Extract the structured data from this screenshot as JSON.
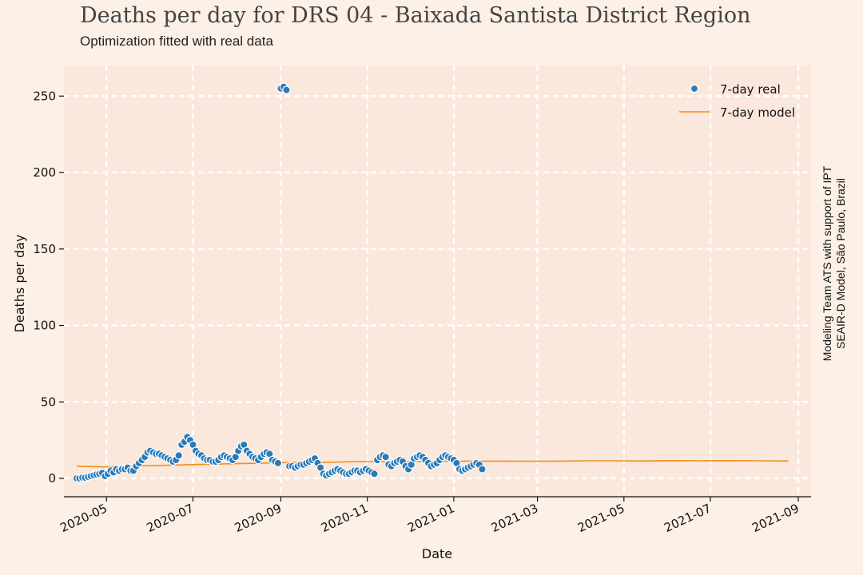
{
  "header": {
    "title": "Deaths per day for DRS 04 - Baixada Santista District Region",
    "subtitle": "Optimization fitted with real data"
  },
  "credit": {
    "line1": "Modeling Team ATS with support of IPT",
    "line2": "SEAIR-D Model, São Paulo, Brazil"
  },
  "colors": {
    "background": "#fdf0e6",
    "plot_area": "#fae8dc",
    "real": "#2a7ab8",
    "model": "#f28e1c",
    "grid": "#ffffff"
  },
  "chart_data": {
    "type": "scatter",
    "title": "Deaths per day for DRS 04 - Baixada Santista District Region",
    "subtitle": "Optimization fitted with real data",
    "xlabel": "Date",
    "ylabel": "Deaths per day",
    "xlim": [
      "2020-04-01",
      "2021-09-10"
    ],
    "ylim": [
      -12,
      270
    ],
    "x_ticks": [
      "2020-05",
      "2020-07",
      "2020-09",
      "2020-11",
      "2021-01",
      "2021-03",
      "2021-05",
      "2021-07",
      "2021-09"
    ],
    "y_ticks": [
      0,
      50,
      100,
      150,
      200,
      250
    ],
    "grid": true,
    "legend_position": "top-right",
    "series": [
      {
        "name": "7-day real",
        "style": "markers",
        "x": [
          "2020-04-10",
          "2020-04-12",
          "2020-04-14",
          "2020-04-16",
          "2020-04-18",
          "2020-04-20",
          "2020-04-22",
          "2020-04-24",
          "2020-04-26",
          "2020-04-28",
          "2020-04-30",
          "2020-05-02",
          "2020-05-04",
          "2020-05-06",
          "2020-05-08",
          "2020-05-10",
          "2020-05-12",
          "2020-05-14",
          "2020-05-16",
          "2020-05-18",
          "2020-05-20",
          "2020-05-22",
          "2020-05-24",
          "2020-05-26",
          "2020-05-28",
          "2020-05-30",
          "2020-06-01",
          "2020-06-03",
          "2020-06-05",
          "2020-06-07",
          "2020-06-09",
          "2020-06-11",
          "2020-06-13",
          "2020-06-15",
          "2020-06-17",
          "2020-06-19",
          "2020-06-21",
          "2020-06-23",
          "2020-06-25",
          "2020-06-27",
          "2020-06-29",
          "2020-07-01",
          "2020-07-03",
          "2020-07-05",
          "2020-07-07",
          "2020-07-09",
          "2020-07-11",
          "2020-07-13",
          "2020-07-15",
          "2020-07-17",
          "2020-07-19",
          "2020-07-21",
          "2020-07-23",
          "2020-07-25",
          "2020-07-27",
          "2020-07-29",
          "2020-07-31",
          "2020-08-02",
          "2020-08-04",
          "2020-08-06",
          "2020-08-08",
          "2020-08-10",
          "2020-08-12",
          "2020-08-14",
          "2020-08-16",
          "2020-08-18",
          "2020-08-20",
          "2020-08-22",
          "2020-08-24",
          "2020-08-26",
          "2020-08-28",
          "2020-08-30",
          "2020-09-01",
          "2020-09-03",
          "2020-09-05",
          "2020-09-07",
          "2020-09-09",
          "2020-09-11",
          "2020-09-13",
          "2020-09-15",
          "2020-09-17",
          "2020-09-19",
          "2020-09-21",
          "2020-09-23",
          "2020-09-25",
          "2020-09-27",
          "2020-09-29",
          "2020-10-01",
          "2020-10-03",
          "2020-10-05",
          "2020-10-07",
          "2020-10-09",
          "2020-10-11",
          "2020-10-13",
          "2020-10-15",
          "2020-10-17",
          "2020-10-19",
          "2020-10-21",
          "2020-10-23",
          "2020-10-25",
          "2020-10-27",
          "2020-10-29",
          "2020-10-31",
          "2020-11-02",
          "2020-11-04",
          "2020-11-06",
          "2020-11-08",
          "2020-11-10",
          "2020-11-12",
          "2020-11-14",
          "2020-11-16",
          "2020-11-18",
          "2020-11-20",
          "2020-11-22",
          "2020-11-24",
          "2020-11-26",
          "2020-11-28",
          "2020-11-30",
          "2020-12-02",
          "2020-12-04",
          "2020-12-06",
          "2020-12-08",
          "2020-12-10",
          "2020-12-12",
          "2020-12-14",
          "2020-12-16",
          "2020-12-18",
          "2020-12-20",
          "2020-12-22",
          "2020-12-24",
          "2020-12-26",
          "2020-12-28",
          "2020-12-30",
          "2021-01-01",
          "2021-01-03",
          "2021-01-05",
          "2021-01-07",
          "2021-01-09",
          "2021-01-11",
          "2021-01-13",
          "2021-01-15",
          "2021-01-17",
          "2021-01-19",
          "2021-01-21"
        ],
        "y": [
          0,
          0,
          0.5,
          0.5,
          1,
          1.5,
          2,
          2.5,
          3,
          3.5,
          1.5,
          3,
          5,
          4,
          6,
          5,
          6,
          6,
          7,
          5,
          5,
          8,
          10,
          12,
          14,
          17,
          18,
          17,
          16,
          16,
          15,
          14,
          13,
          12,
          11,
          12,
          15,
          22,
          24,
          27,
          25,
          22,
          18,
          16,
          15,
          13,
          12,
          12,
          11,
          11,
          12,
          14,
          15,
          14,
          13,
          12,
          14,
          18,
          21,
          22,
          18,
          16,
          14,
          13,
          12,
          14,
          16,
          17,
          16,
          12,
          11,
          10,
          255,
          256,
          254,
          8,
          8,
          7,
          8,
          9,
          9,
          10,
          11,
          12,
          13,
          10,
          7,
          3,
          2,
          3,
          4,
          5,
          6,
          5,
          4,
          3,
          3,
          4,
          5,
          5,
          4,
          5,
          6,
          5,
          4,
          3,
          12,
          14,
          15,
          14,
          9,
          8,
          10,
          11,
          12,
          11,
          8,
          6,
          9,
          13,
          14,
          15,
          14,
          12,
          10,
          8,
          9,
          10,
          12,
          14,
          15,
          14,
          13,
          12,
          10,
          6,
          5,
          6,
          7,
          8,
          9,
          10,
          9,
          6
        ]
      },
      {
        "name": "7-day model",
        "style": "line",
        "x": [
          "2020-04-10",
          "2020-05-01",
          "2020-05-20",
          "2020-06-10",
          "2020-07-01",
          "2020-07-25",
          "2020-08-20",
          "2020-09-10",
          "2020-10-01",
          "2020-10-25",
          "2020-11-15",
          "2020-12-05",
          "2020-12-25",
          "2021-01-15",
          "2021-02-05",
          "2021-02-25",
          "2021-03-15",
          "2021-04-05",
          "2021-04-25",
          "2021-05-15",
          "2021-06-05",
          "2021-06-25",
          "2021-07-15",
          "2021-08-05",
          "2021-08-25"
        ],
        "y": [
          8,
          7.5,
          8,
          8.5,
          9,
          9.5,
          10,
          10.5,
          10.5,
          11,
          11,
          11,
          11.2,
          11.3,
          11.3,
          11.2,
          11.3,
          11.5,
          11.5,
          11.4,
          11.6,
          11.5,
          11.6,
          11.5,
          11.4
        ]
      }
    ]
  }
}
